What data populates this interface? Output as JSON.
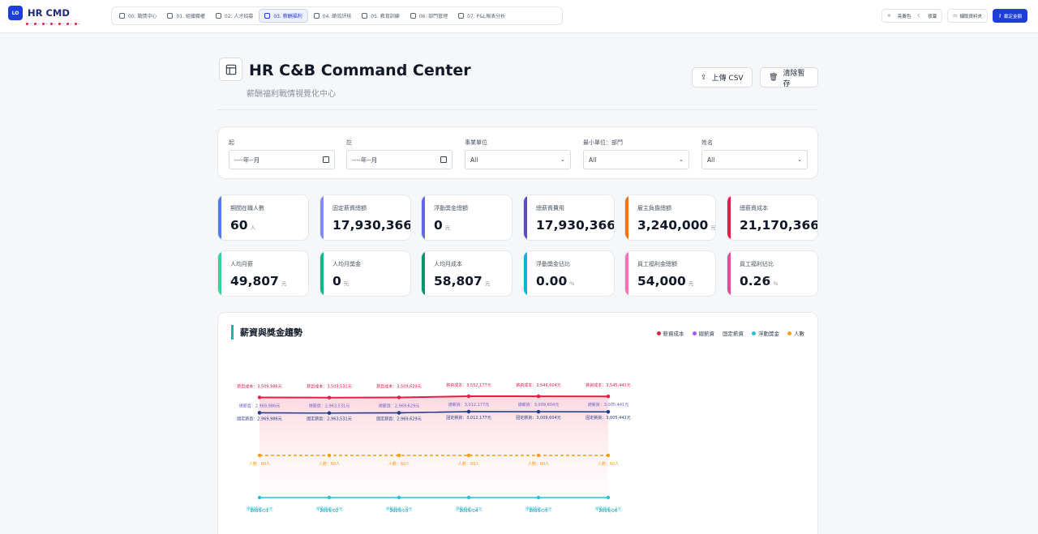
{
  "app": {
    "logo_mark": "LO",
    "name": "HR CMD",
    "dot_labels": [
      "",
      "",
      "",
      "",
      "",
      "",
      ""
    ]
  },
  "nav": {
    "tabs": [
      {
        "label": "00. 戰情中心",
        "icon": "dashboard-icon",
        "active": false
      },
      {
        "label": "01. 組織職權",
        "icon": "users-icon",
        "active": false
      },
      {
        "label": "02. 人才招募",
        "icon": "user-plus-icon",
        "active": false
      },
      {
        "label": "03. 薪酬福利",
        "icon": "calendar-icon",
        "active": true
      },
      {
        "label": "04. 績效評核",
        "icon": "target-icon",
        "active": false
      },
      {
        "label": "05. 教育訓練",
        "icon": "graduation-icon",
        "active": false
      },
      {
        "label": "06. 部門管理",
        "icon": "pie-icon",
        "active": false
      },
      {
        "label": "07. P&L報表分析",
        "icon": "chart-icon",
        "active": false
      }
    ]
  },
  "toolbar": {
    "theme_light": "亮黃色",
    "theme_dark": "夜幕",
    "fetch_label": "擷取資料夾",
    "primary_label": "載定金額"
  },
  "header": {
    "title": "HR C&B Command Center",
    "subtitle": "薪酬福利戰情視覺化中心",
    "upload_label": "上傳 CSV",
    "clear_label": "清除暫存"
  },
  "filters": [
    {
      "label": "起",
      "value": "----年--月",
      "type": "month"
    },
    {
      "label": "訖",
      "value": "----年--月",
      "type": "month"
    },
    {
      "label": "事業單位",
      "value": "All",
      "type": "select"
    },
    {
      "label": "最小單位：部門",
      "value": "All",
      "type": "select"
    },
    {
      "label": "姓名",
      "value": "All",
      "type": "select"
    }
  ],
  "kpis": [
    {
      "label": "期間在職人數",
      "value": "60",
      "unit": "人",
      "color": "#4f7fe6"
    },
    {
      "label": "固定薪資總額",
      "value": "17,930,366.62",
      "unit": "元",
      "color": "#818cf8"
    },
    {
      "label": "浮動獎金總額",
      "value": "0",
      "unit": "元",
      "color": "#6366f1"
    },
    {
      "label": "總薪資費用",
      "value": "17,930,366.62",
      "unit": "元",
      "color": "#5b4bc4"
    },
    {
      "label": "雇主負擔總額",
      "value": "3,240,000",
      "unit": "元",
      "color": "#f97316"
    },
    {
      "label": "總薪資成本",
      "value": "21,170,366.62",
      "unit": "元",
      "color": "#e11d48"
    },
    {
      "label": "人均月薪",
      "value": "49,807",
      "unit": "元",
      "color": "#34d399"
    },
    {
      "label": "人均月獎金",
      "value": "0",
      "unit": "元",
      "color": "#10b981"
    },
    {
      "label": "人均月成本",
      "value": "58,807",
      "unit": "元",
      "color": "#059669"
    },
    {
      "label": "浮動獎金佔比",
      "value": "0.00",
      "unit": "%",
      "color": "#06b6d4"
    },
    {
      "label": "員工福利金總額",
      "value": "54,000",
      "unit": "元",
      "color": "#f472b6"
    },
    {
      "label": "員工福利佔比",
      "value": "0.26",
      "unit": "%",
      "color": "#ec4899"
    }
  ],
  "chart_section": {
    "title": "薪資與獎金趨勢",
    "legend": [
      {
        "name": "薪資成本",
        "color": "#e11d48",
        "show_dot": true
      },
      {
        "name": "總薪資",
        "color": "#a855f7",
        "show_dot": true
      },
      {
        "name": "固定薪資",
        "color": "#1e3a8a",
        "show_dot": false
      },
      {
        "name": "浮動獎金",
        "color": "#22c3d6",
        "show_dot": true
      },
      {
        "name": "人數",
        "color": "#f59e0b",
        "show_dot": true
      }
    ]
  },
  "chart_data": {
    "type": "line",
    "x": [
      "2025/01",
      "2025/02",
      "2025/03",
      "2025/04",
      "2025/05",
      "2025/06"
    ],
    "series": [
      {
        "name": "薪資成本",
        "prefix": "薪資成本：",
        "suffix": "元",
        "color": "#e11d48",
        "values": [
          3509986,
          3503531,
          3509629,
          3552177,
          3549604,
          3545441
        ],
        "labels": [
          "3,509,986",
          "3,503,531",
          "3,509,629",
          "3,552,177",
          "3,549,604",
          "3,545,441"
        ]
      },
      {
        "name": "總薪資",
        "prefix": "總薪資：",
        "suffix": "元",
        "color": "#6d5bd0",
        "values": [
          2969986,
          2963531,
          2969629,
          3012177,
          3009604,
          3005441
        ],
        "labels": [
          "2,969,986",
          "2,963,531",
          "2,969,629",
          "3,012,177",
          "3,009,604",
          "3,005,441"
        ]
      },
      {
        "name": "固定薪資",
        "prefix": "固定薪資：",
        "suffix": "元",
        "color": "#1e3a8a",
        "values": [
          2969986,
          2963531,
          2969629,
          3012177,
          3009604,
          3005441
        ],
        "labels": [
          "2,969,986",
          "2,963,531",
          "2,969,629",
          "3,012,177",
          "3,009,604",
          "3,005,441"
        ]
      },
      {
        "name": "人數",
        "prefix": "人數：",
        "suffix": "人",
        "color": "#f59e0b",
        "values": [
          60,
          60,
          60,
          60,
          60,
          60
        ],
        "labels": [
          "60",
          "60",
          "60",
          "60",
          "60",
          "60"
        ]
      },
      {
        "name": "浮動獎金",
        "prefix": "浮動獎金：",
        "suffix": "元",
        "color": "#22c3d6",
        "values": [
          0,
          0,
          0,
          0,
          0,
          0
        ],
        "labels": [
          "0",
          "0",
          "0",
          "0",
          "0",
          "0"
        ]
      }
    ]
  }
}
